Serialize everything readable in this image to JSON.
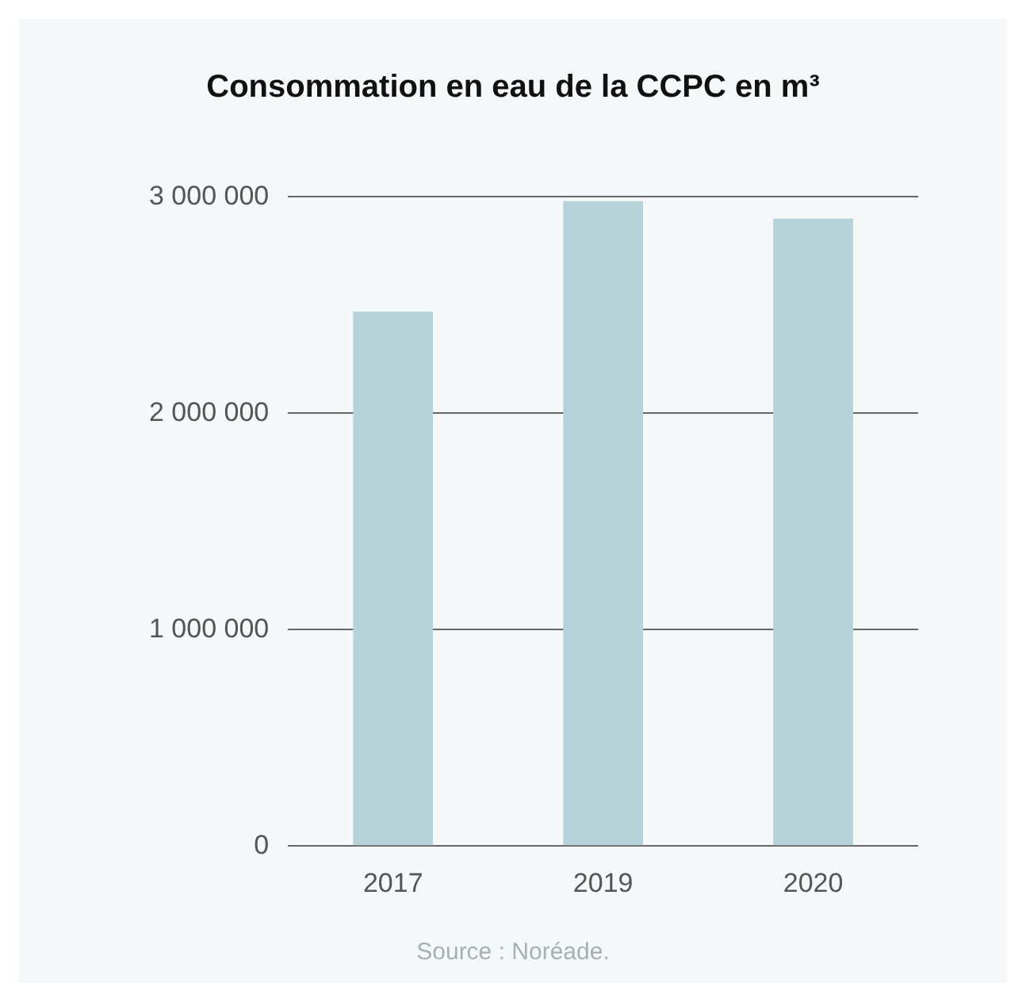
{
  "chart_data": {
    "type": "bar",
    "title": "Consommation en eau de la CCPC en m³",
    "categories": [
      "2017",
      "2019",
      "2020"
    ],
    "values": [
      2470000,
      2980000,
      2900000
    ],
    "color": "#b5d3d8",
    "ylim": [
      0,
      3000000
    ],
    "yticks": [
      {
        "value": 0,
        "label": "0"
      },
      {
        "value": 1000000,
        "label": "1 000 000"
      },
      {
        "value": 2000000,
        "label": "2 000 000"
      },
      {
        "value": 3000000,
        "label": "3 000 000"
      }
    ],
    "grid": "y",
    "annotations": [
      "Source : Noréade."
    ]
  }
}
